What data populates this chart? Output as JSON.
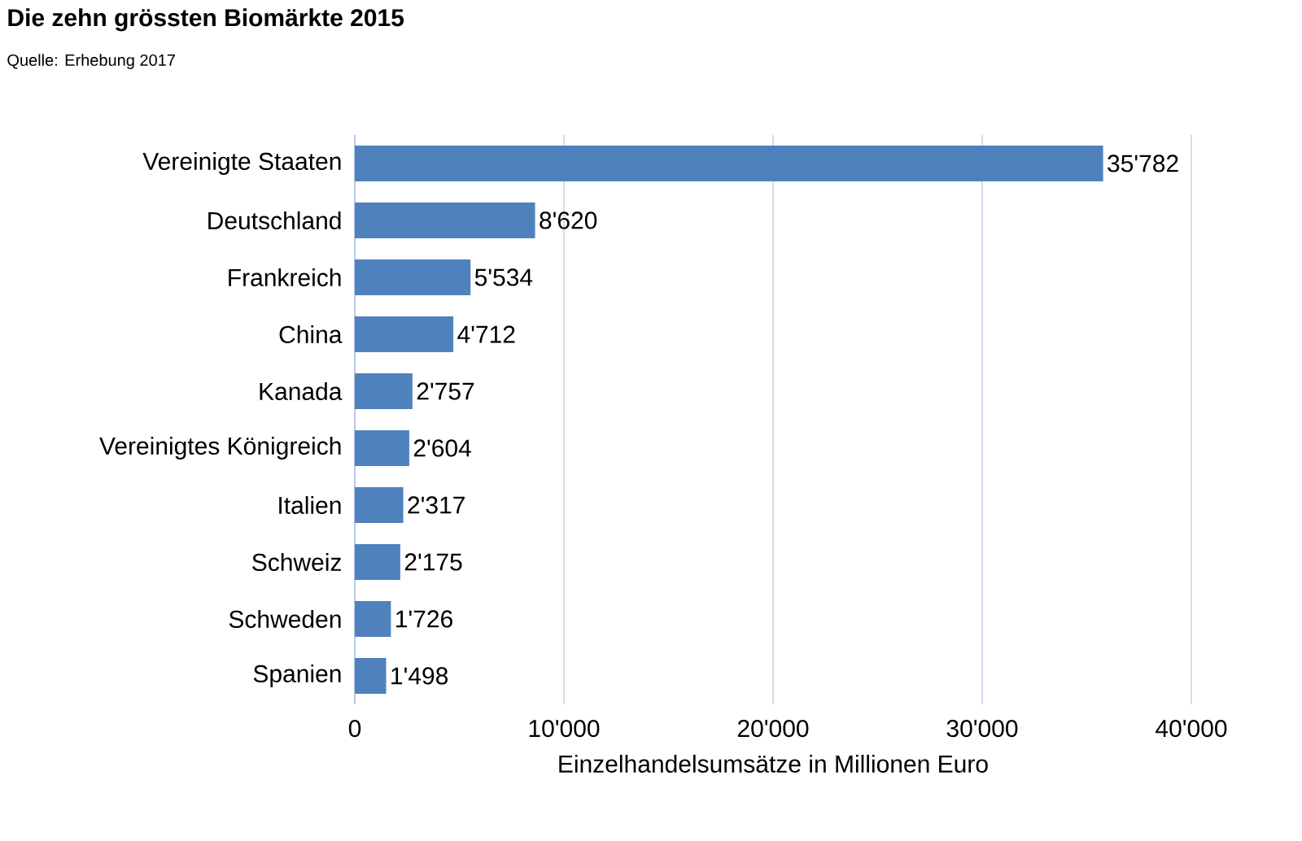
{
  "chart_data": {
    "type": "bar",
    "orientation": "horizontal",
    "title": "Die zehn grössten Biomärkte  2015",
    "annotations": [
      "Quelle: Erhebung 2017"
    ],
    "xlabel": "Einzelhandelsumsätze in Millionen Euro",
    "categories": [
      "Vereinigte Staaten",
      "Deutschland",
      "Frankreich",
      "China",
      "Kanada",
      "Vereinigtes Königreich",
      "Italien",
      "Schweiz",
      "Schweden",
      "Spanien"
    ],
    "values": [
      35782,
      8620,
      5534,
      4712,
      2757,
      2604,
      2317,
      2175,
      1726,
      1498
    ],
    "value_labels": [
      "35'782",
      "8'620",
      "5'534",
      "4'712",
      "2'757",
      "2'604",
      "2'317",
      "2'175",
      "1'726",
      "1'498"
    ],
    "color": "#4f81bd",
    "xlim": [
      0,
      40000
    ],
    "xticks": [
      0,
      {
        "value": 10000,
        "label": "10'000"
      },
      {
        "value": 20000,
        "label": "20'000"
      },
      {
        "value": 30000,
        "label": "30'000"
      },
      {
        "value": 40000,
        "label": "40'000"
      }
    ],
    "grid": "x"
  }
}
